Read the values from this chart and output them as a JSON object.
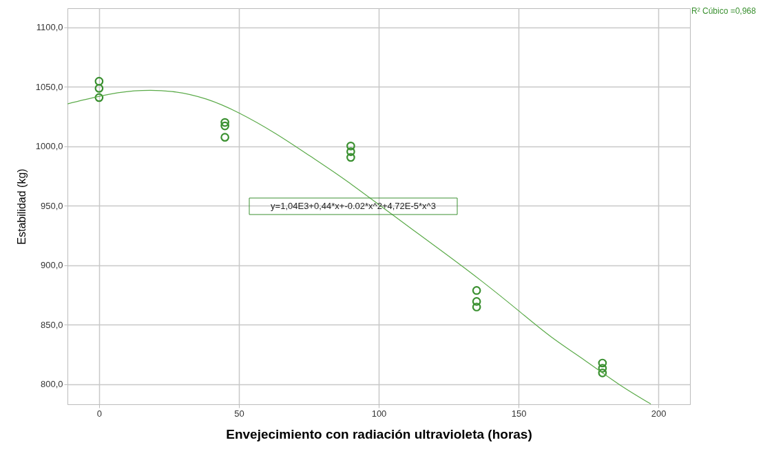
{
  "chart_data": {
    "type": "scatter",
    "xlabel": "Envejecimiento con radiación ultravioleta (horas)",
    "ylabel": "Estabilidad (kg)",
    "series": [
      {
        "marker": "circle",
        "color": "#3a9030",
        "x": [
          0,
          0,
          0,
          45,
          45,
          45,
          90,
          90,
          90,
          135,
          135,
          135,
          180,
          180,
          180
        ],
        "values": [
          1054.6,
          1048.7,
          1040.9,
          1020,
          1017.1,
          1007.5,
          1000.2,
          995.4,
          990.6,
          878.7,
          869.5,
          864.8,
          817.7,
          813.3,
          809.4
        ]
      },
      {
        "type": "line",
        "marker": "none",
        "line_style": "solid",
        "color": "#5aaa48",
        "x": [
          -11.3,
          0,
          12.6,
          26.1,
          38.4,
          50,
          63,
          75.4,
          87.7,
          100,
          112.3,
          124.6,
          136.9,
          150,
          161.6,
          173.9,
          186.2,
          197.3
        ],
        "values": [
          1035.6,
          1041.9,
          1046.5,
          1046,
          1039.6,
          1028,
          1010.8,
          991.8,
          972.2,
          951,
          929.6,
          908.3,
          886.4,
          861.7,
          839.8,
          819.6,
          799.4,
          783.3
        ]
      }
    ],
    "annotations": [
      "y=1,04E3+0,44*x+-0.02*x^2+4,72E-5*x^3",
      "R² Cúbico =0,968"
    ],
    "xlim": [
      -11.3,
      211.3
    ],
    "ylim": [
      783,
      1116
    ],
    "xticks": [
      0,
      50,
      100,
      150,
      200
    ],
    "yticks": [
      {
        "value": 800,
        "label": "800,0"
      },
      {
        "value": 850,
        "label": "850,0"
      },
      {
        "value": 900,
        "label": "900,0"
      },
      {
        "value": 950,
        "label": "950,0"
      },
      {
        "value": 1000,
        "label": "1000,0"
      },
      {
        "value": 1050,
        "label": "1050,0"
      },
      {
        "value": 1100,
        "label": "1100,0"
      }
    ],
    "grid": true
  }
}
